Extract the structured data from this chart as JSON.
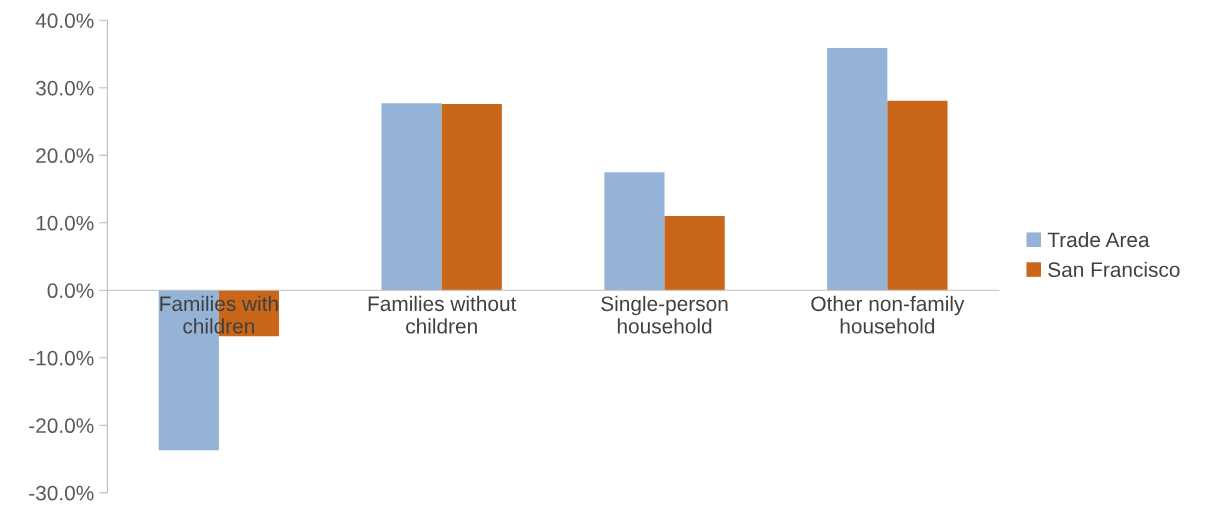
{
  "chart_data": {
    "type": "bar",
    "categories": [
      "Families with\nchildren",
      "Families without\nchildren",
      "Single-person\nhousehold",
      "Other non-family\nhousehold"
    ],
    "series": [
      {
        "name": "Trade Area",
        "color": "#95b3d7",
        "values": [
          -23.7,
          27.7,
          17.5,
          35.9
        ]
      },
      {
        "name": "San Francisco",
        "color": "#c96619",
        "values": [
          -6.8,
          27.6,
          11.0,
          28.1
        ]
      }
    ],
    "ylim": [
      -30,
      40
    ],
    "yticks": [
      {
        "value": -30,
        "label": "-30.0%"
      },
      {
        "value": -20,
        "label": "-20.0%"
      },
      {
        "value": -10,
        "label": "-10.0%"
      },
      {
        "value": 0,
        "label": "0.0%"
      },
      {
        "value": 10,
        "label": "10.0%"
      },
      {
        "value": 20,
        "label": "20.0%"
      },
      {
        "value": 30,
        "label": "30.0%"
      },
      {
        "value": 40,
        "label": "40.0%"
      }
    ],
    "grid": false,
    "legend": "right"
  }
}
